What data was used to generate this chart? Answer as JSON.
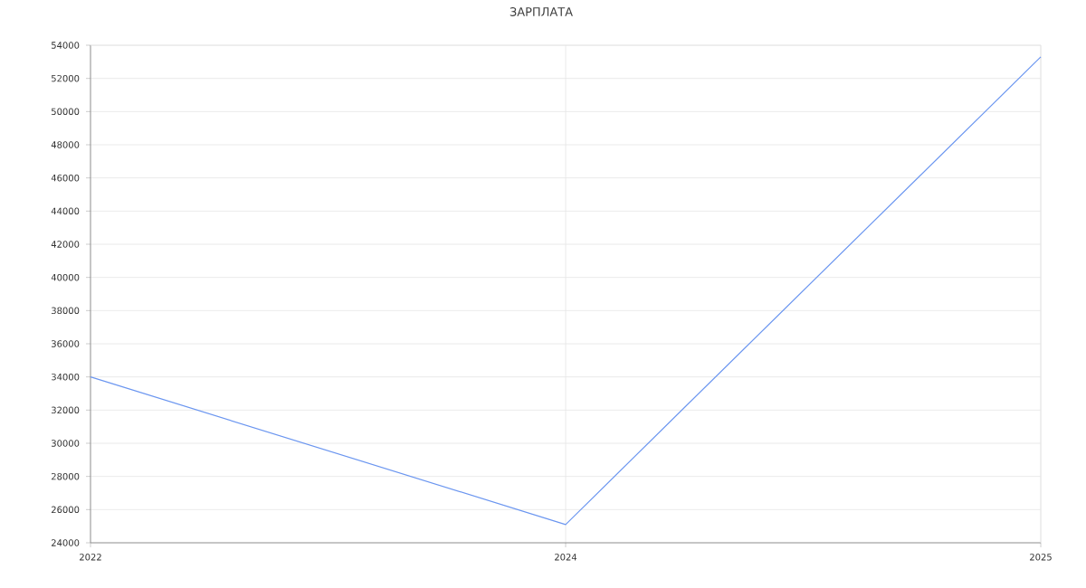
{
  "chart_data": {
    "type": "line",
    "title": "ЗАРПЛАТА",
    "categories": [
      "2022",
      "2024",
      "2025"
    ],
    "series": [
      {
        "color": "#6b96f0",
        "values": [
          34000,
          25100,
          53300
        ]
      }
    ],
    "ylim": [
      24000,
      54000
    ],
    "yticks": [
      24000,
      26000,
      28000,
      30000,
      32000,
      34000,
      36000,
      38000,
      40000,
      42000,
      44000,
      46000,
      48000,
      50000,
      52000,
      54000
    ],
    "grid": true,
    "marker": "none",
    "line_style": "solid"
  }
}
